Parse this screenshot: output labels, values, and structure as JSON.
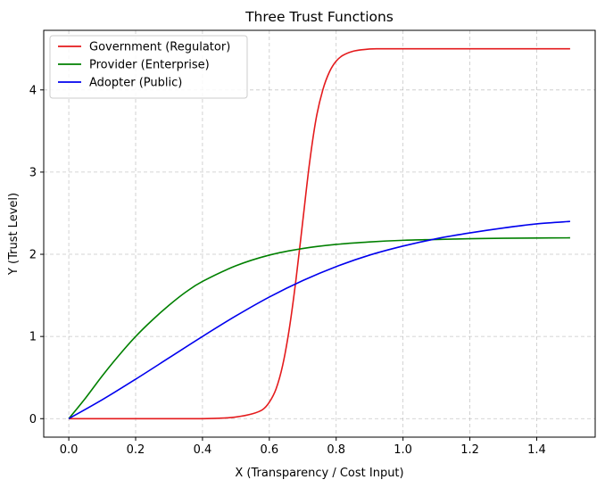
{
  "chart_data": {
    "type": "line",
    "title": "Three Trust Functions",
    "xlabel": "X (Transparency / Cost Input)",
    "ylabel": "Y (Trust Level)",
    "xlim": [
      -0.075,
      1.575
    ],
    "ylim": [
      -0.225,
      4.725
    ],
    "xticks": [
      0.0,
      0.2,
      0.4,
      0.6,
      0.8,
      1.0,
      1.2,
      1.4
    ],
    "xtick_labels": [
      "0.0",
      "0.2",
      "0.4",
      "0.6",
      "0.8",
      "1.0",
      "1.2",
      "1.4"
    ],
    "yticks": [
      0,
      1,
      2,
      3,
      4
    ],
    "ytick_labels": [
      "0",
      "1",
      "2",
      "3",
      "4"
    ],
    "grid": true,
    "legend_position": "top-left",
    "series": [
      {
        "name": "Government (Regulator)",
        "color": "#e41a1c",
        "x": [
          0.0,
          0.1,
          0.2,
          0.3,
          0.4,
          0.45,
          0.5,
          0.55,
          0.58,
          0.6,
          0.62,
          0.64,
          0.66,
          0.68,
          0.7,
          0.72,
          0.74,
          0.76,
          0.78,
          0.8,
          0.82,
          0.85,
          0.88,
          0.92,
          1.0,
          1.1,
          1.2,
          1.3,
          1.4,
          1.5
        ],
        "y": [
          0.0,
          0.0,
          0.0,
          0.0,
          0.0,
          0.005,
          0.02,
          0.06,
          0.11,
          0.2,
          0.36,
          0.65,
          1.1,
          1.7,
          2.4,
          3.1,
          3.65,
          4.0,
          4.22,
          4.35,
          4.42,
          4.47,
          4.49,
          4.5,
          4.5,
          4.5,
          4.5,
          4.5,
          4.5,
          4.5
        ]
      },
      {
        "name": "Provider (Enterprise)",
        "color": "#008000",
        "x": [
          0.0,
          0.05,
          0.1,
          0.15,
          0.2,
          0.25,
          0.3,
          0.35,
          0.4,
          0.5,
          0.6,
          0.7,
          0.8,
          0.9,
          1.0,
          1.1,
          1.2,
          1.3,
          1.4,
          1.5
        ],
        "y": [
          0.0,
          0.25,
          0.52,
          0.77,
          1.0,
          1.2,
          1.38,
          1.54,
          1.67,
          1.86,
          1.99,
          2.07,
          2.12,
          2.15,
          2.17,
          2.18,
          2.19,
          2.195,
          2.198,
          2.2
        ]
      },
      {
        "name": "Adopter (Public)",
        "color": "#0000ee",
        "x": [
          0.0,
          0.1,
          0.2,
          0.3,
          0.4,
          0.5,
          0.6,
          0.7,
          0.8,
          0.9,
          1.0,
          1.1,
          1.2,
          1.3,
          1.4,
          1.5
        ],
        "y": [
          0.0,
          0.23,
          0.48,
          0.74,
          1.0,
          1.25,
          1.48,
          1.68,
          1.85,
          1.99,
          2.1,
          2.19,
          2.26,
          2.32,
          2.37,
          2.4
        ]
      }
    ]
  }
}
